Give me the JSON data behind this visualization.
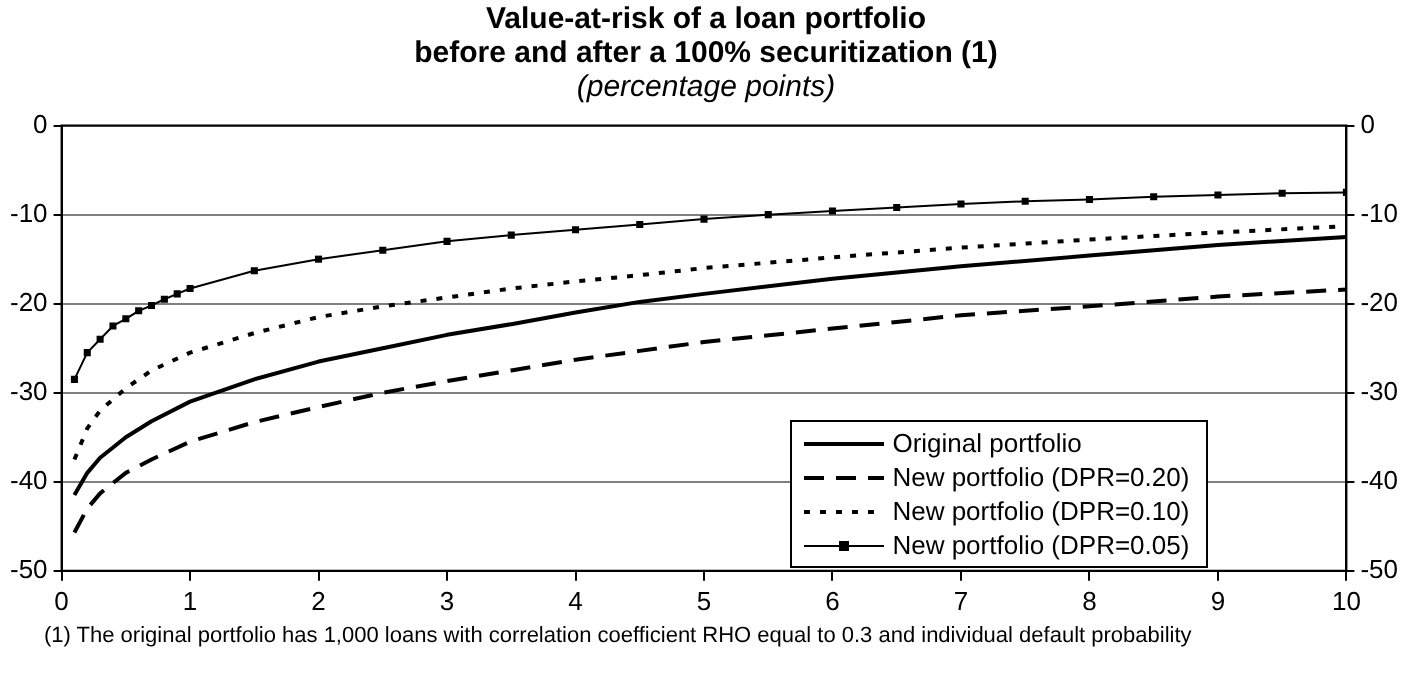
{
  "chart_data": {
    "type": "line",
    "title": "Value-at-risk of a loan portfolio\nbefore and after a 100% securitization (1)",
    "subtitle": "(percentage points)",
    "annotations": [
      "(1) The original portfolio has 1,000 loans with correlation coefficient RHO equal to 0.3 and individual default probability"
    ],
    "xlim": [
      0,
      10
    ],
    "xticks": [
      0,
      1,
      2,
      3,
      4,
      5,
      6,
      7,
      8,
      9,
      10
    ],
    "ylim": [
      -50,
      0
    ],
    "yticks": [
      -50,
      -40,
      -30,
      -20,
      -10,
      0
    ],
    "y2lim": [
      -50,
      0
    ],
    "y2ticks": [
      -50,
      -40,
      -30,
      -20,
      -10,
      0
    ],
    "grid": "y",
    "legend": "bottom right",
    "marker": "none",
    "series": [
      {
        "name": "Original portfolio",
        "color": "#000000",
        "line_style": "solid",
        "x": [
          0.1,
          0.2,
          0.3,
          0.5,
          0.7,
          1,
          1.5,
          2,
          2.5,
          3,
          3.5,
          4,
          4.5,
          5,
          6,
          7,
          8,
          9,
          10
        ],
        "values": [
          -41.5,
          -39,
          -37.3,
          -35,
          -33.2,
          -31,
          -28.5,
          -26.5,
          -25,
          -23.5,
          -22.3,
          -21,
          -19.8,
          -18.9,
          -17.2,
          -15.8,
          -14.6,
          -13.4,
          -12.5
        ]
      },
      {
        "name": "New portfolio (DPR=0.20)",
        "color": "#000000",
        "line_style": "dashed",
        "x": [
          0.1,
          0.2,
          0.3,
          0.5,
          0.7,
          1,
          1.5,
          2,
          2.5,
          3,
          3.5,
          4,
          4.5,
          5,
          6,
          7,
          8,
          9,
          10
        ],
        "values": [
          -45.7,
          -43,
          -41.3,
          -39,
          -37.5,
          -35.5,
          -33.3,
          -31.6,
          -30,
          -28.7,
          -27.5,
          -26.3,
          -25.3,
          -24.3,
          -22.8,
          -21.3,
          -20.3,
          -19.2,
          -18.4
        ]
      },
      {
        "name": "New portfolio (DPR=0.10)",
        "color": "#000000",
        "line_style": "dotted",
        "x": [
          0.1,
          0.2,
          0.3,
          0.5,
          0.7,
          1,
          1.5,
          2,
          2.5,
          3,
          3.5,
          4,
          4.5,
          5,
          6,
          7,
          8,
          9,
          10
        ],
        "values": [
          -37.5,
          -34,
          -32,
          -29.5,
          -27.5,
          -25.5,
          -23.3,
          -21.5,
          -20.3,
          -19.3,
          -18.3,
          -17.5,
          -16.8,
          -16,
          -14.8,
          -13.7,
          -12.8,
          -12,
          -11.3
        ]
      },
      {
        "name": "New portfolio (DPR=0.05)",
        "color": "#000000",
        "line_style": "solid",
        "marker": "square",
        "x": [
          0.1,
          0.2,
          0.3,
          0.4,
          0.5,
          0.6,
          0.7,
          0.8,
          0.9,
          1,
          1.5,
          2,
          2.5,
          3,
          3.5,
          4,
          4.5,
          5,
          5.5,
          6,
          6.5,
          7,
          7.5,
          8,
          8.5,
          9,
          9.5,
          10
        ],
        "values": [
          -28.5,
          -25.5,
          -24,
          -22.5,
          -21.7,
          -20.8,
          -20.2,
          -19.5,
          -18.9,
          -18.3,
          -16.3,
          -15,
          -14,
          -13,
          -12.3,
          -11.7,
          -11.1,
          -10.5,
          -10,
          -9.6,
          -9.2,
          -8.8,
          -8.5,
          -8.3,
          -8,
          -7.8,
          -7.6,
          -7.5
        ]
      }
    ]
  }
}
